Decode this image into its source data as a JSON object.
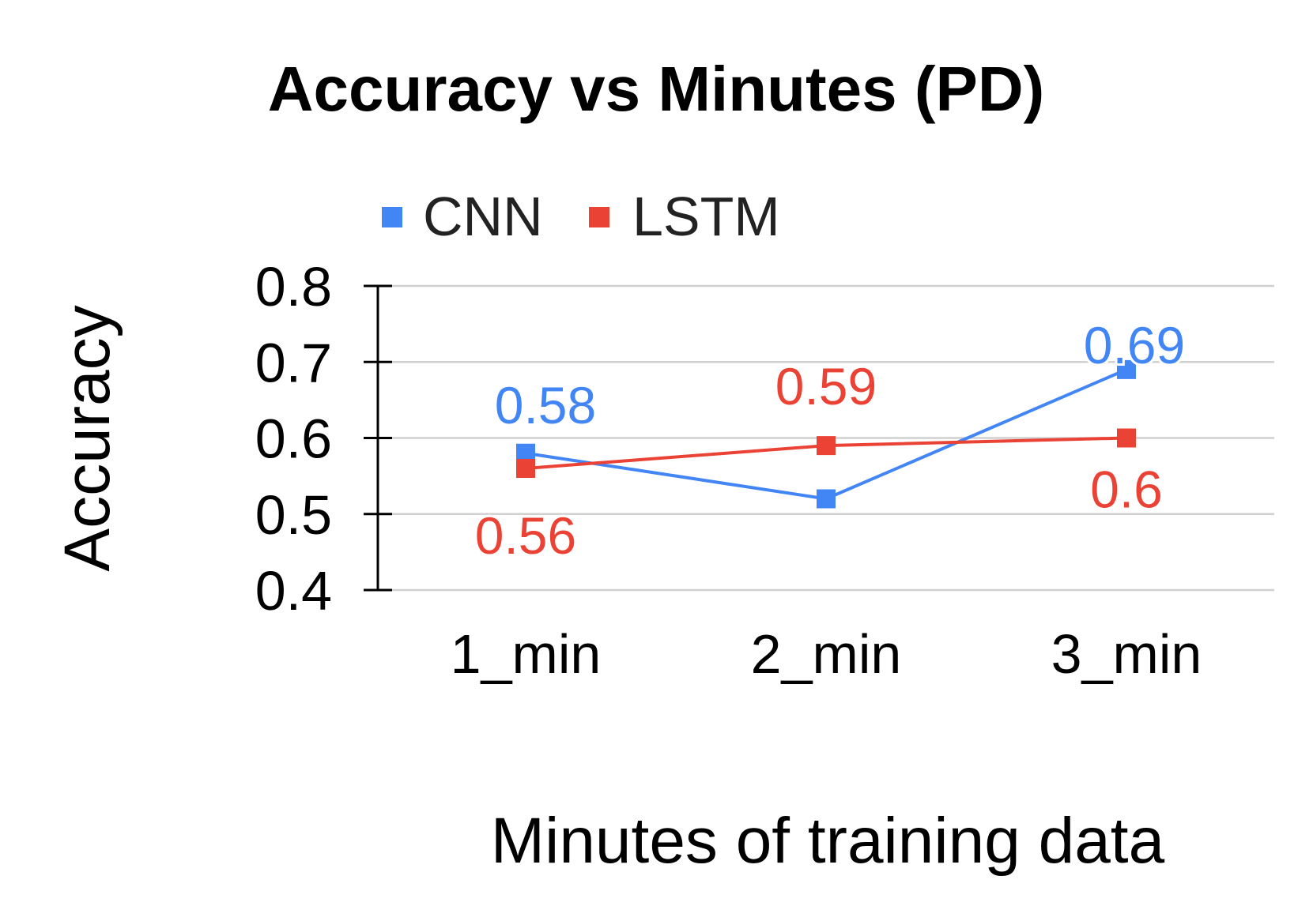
{
  "chart_data": {
    "type": "line",
    "title": "Accuracy vs Minutes (PD)",
    "xlabel": "Minutes of training data",
    "ylabel": "Accuracy",
    "categories": [
      "1_min",
      "2_min",
      "3_min"
    ],
    "ylim": [
      0.4,
      0.8
    ],
    "yticks": [
      "0.8",
      "0.7",
      "0.6",
      "0.5",
      "0.4"
    ],
    "grid": true,
    "legend_position": "top",
    "series": [
      {
        "name": "CNN",
        "color": "#4285f4",
        "values": [
          0.58,
          0.52,
          0.69
        ],
        "labels": [
          "0.58",
          "",
          "0.69"
        ]
      },
      {
        "name": "LSTM",
        "color": "#ea4335",
        "values": [
          0.56,
          0.59,
          0.6
        ],
        "labels": [
          "0.56",
          "0.59",
          "0.6"
        ]
      }
    ]
  }
}
